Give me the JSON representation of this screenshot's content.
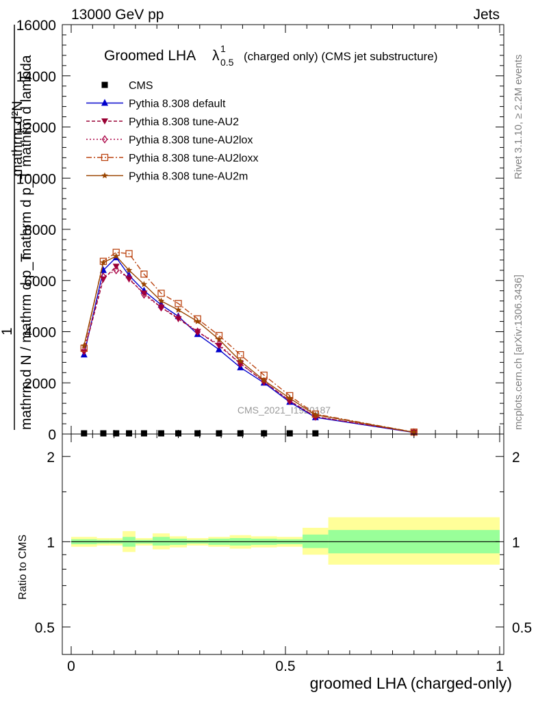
{
  "header": {
    "left": "13000 GeV pp",
    "right": "Jets"
  },
  "plot_title": {
    "main": "Groomed LHA",
    "lambda": "λ",
    "superscript": "1",
    "subscript": "0.5",
    "suffix": "(charged only) (CMS jet substructure)"
  },
  "side_text": {
    "rivet": "Rivet 3.1.10, ≥ 2.2M events",
    "mcplots": "mcplots.cern.ch [arXiv:1306.3436]"
  },
  "watermark": "CMS_2021_I1920187",
  "y_title_lines": [
    "mathrm d²N",
    "mathrm d p_T mathrm d lambda",
    "1",
    "mathrm d N / mathrm d p_T"
  ],
  "ratio_ylabel": "Ratio to CMS",
  "xlabel": "groomed LHA (charged-only)",
  "colors": {
    "cms": "#000000",
    "default": "#0000cc",
    "au2": "#990033",
    "au2lox": "#aa0044",
    "au2loxx": "#bb4411",
    "au2m": "#994400",
    "band_inner": "#99ff99",
    "band_outer": "#ffff99"
  },
  "chart_data": {
    "type": "line",
    "x": [
      0.03,
      0.075,
      0.105,
      0.135,
      0.17,
      0.21,
      0.25,
      0.295,
      0.345,
      0.395,
      0.45,
      0.51,
      0.57,
      0.8
    ],
    "xlim": [
      -0.02,
      1.0
    ],
    "ylim": [
      0,
      16000
    ],
    "yticks": [
      0,
      2000,
      4000,
      6000,
      8000,
      10000,
      12000,
      14000,
      16000
    ],
    "xticks": [
      0,
      0.5,
      1
    ],
    "series": [
      {
        "name": "CMS",
        "marker": "square",
        "values": [
          0,
          0,
          0,
          0,
          0,
          0,
          0,
          0,
          0,
          0,
          0,
          0,
          0,
          null
        ]
      },
      {
        "name": "Pythia 8.308 default",
        "marker": "triangle",
        "dash": "",
        "values": [
          3100,
          6400,
          6900,
          6200,
          5600,
          5050,
          4600,
          3900,
          3300,
          2600,
          2000,
          1250,
          650,
          60
        ]
      },
      {
        "name": "Pythia 8.308 tune-AU2",
        "marker": "triangle-down",
        "dash": "5,3",
        "values": [
          3200,
          6050,
          6550,
          6050,
          5500,
          4950,
          4500,
          4000,
          3450,
          2750,
          2050,
          1300,
          680,
          65
        ]
      },
      {
        "name": "Pythia 8.308 tune-AU2lox",
        "marker": "diamond",
        "dash": "2,3",
        "values": [
          3250,
          6150,
          6400,
          6100,
          5450,
          4950,
          4550,
          4000,
          3500,
          2750,
          2050,
          1300,
          680,
          65
        ]
      },
      {
        "name": "Pythia 8.308 tune-AU2loxx",
        "marker": "square-open",
        "dash": "8,3,2,3",
        "values": [
          3350,
          6750,
          7100,
          7050,
          6250,
          5500,
          5100,
          4500,
          3850,
          3100,
          2300,
          1500,
          780,
          75
        ]
      },
      {
        "name": "Pythia 8.308 tune-AU2m",
        "marker": "star",
        "dash": "",
        "values": [
          3450,
          6700,
          6950,
          6400,
          5850,
          5200,
          4850,
          4400,
          3700,
          2850,
          2100,
          1400,
          750,
          70
        ]
      }
    ],
    "ratio": {
      "ylim": [
        0.4,
        2.4
      ],
      "log": true,
      "yticks": [
        0.5,
        1,
        2
      ],
      "bands": [
        {
          "x": [
            0.0,
            0.06
          ],
          "inner": [
            0.98,
            1.02
          ],
          "outer": [
            0.96,
            1.04
          ]
        },
        {
          "x": [
            0.06,
            0.09
          ],
          "inner": [
            0.985,
            1.015
          ],
          "outer": [
            0.97,
            1.03
          ]
        },
        {
          "x": [
            0.09,
            0.12
          ],
          "inner": [
            0.985,
            1.015
          ],
          "outer": [
            0.97,
            1.03
          ]
        },
        {
          "x": [
            0.12,
            0.15
          ],
          "inner": [
            0.96,
            1.04
          ],
          "outer": [
            0.92,
            1.09
          ]
        },
        {
          "x": [
            0.15,
            0.19
          ],
          "inner": [
            0.985,
            1.015
          ],
          "outer": [
            0.97,
            1.03
          ]
        },
        {
          "x": [
            0.19,
            0.23
          ],
          "inner": [
            0.97,
            1.04
          ],
          "outer": [
            0.94,
            1.07
          ]
        },
        {
          "x": [
            0.23,
            0.27
          ],
          "inner": [
            0.975,
            1.025
          ],
          "outer": [
            0.955,
            1.045
          ]
        },
        {
          "x": [
            0.27,
            0.32
          ],
          "inner": [
            0.985,
            1.015
          ],
          "outer": [
            0.97,
            1.03
          ]
        },
        {
          "x": [
            0.32,
            0.37
          ],
          "inner": [
            0.975,
            1.025
          ],
          "outer": [
            0.96,
            1.04
          ]
        },
        {
          "x": [
            0.37,
            0.42
          ],
          "inner": [
            0.97,
            1.03
          ],
          "outer": [
            0.945,
            1.055
          ]
        },
        {
          "x": [
            0.42,
            0.48
          ],
          "inner": [
            0.975,
            1.025
          ],
          "outer": [
            0.955,
            1.045
          ]
        },
        {
          "x": [
            0.48,
            0.54
          ],
          "inner": [
            0.98,
            1.02
          ],
          "outer": [
            0.96,
            1.04
          ]
        },
        {
          "x": [
            0.54,
            0.6
          ],
          "inner": [
            0.95,
            1.06
          ],
          "outer": [
            0.9,
            1.12
          ]
        },
        {
          "x": [
            0.6,
            1.0
          ],
          "inner": [
            0.91,
            1.1
          ],
          "outer": [
            0.83,
            1.22
          ]
        }
      ]
    }
  }
}
